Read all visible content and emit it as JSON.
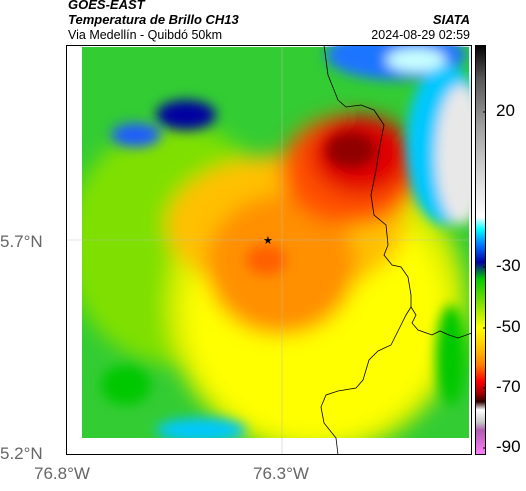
{
  "header": {
    "satellite": "GOES-EAST",
    "product": "Temperatura de Brillo CH13",
    "route": "Via Medellín - Quibdó 50km",
    "agency": "SIATA",
    "datetime": "2024-08-29 02:59"
  },
  "axes": {
    "lat_ticks": [
      "5.7°N",
      "5.2°N"
    ],
    "lon_ticks": [
      "76.8°W",
      "76.3°W"
    ]
  },
  "colorbar": {
    "ticks": [
      "20",
      "-30",
      "-50",
      "-70",
      "-90"
    ],
    "colors": [
      "#000000",
      "#444444",
      "#7a7a7a",
      "#a8a8a8",
      "#d4d4d4",
      "#ffffff",
      "#00ffff",
      "#00c8ff",
      "#0070ff",
      "#0000a0",
      "#00c800",
      "#7fe000",
      "#ffff00",
      "#ffc000",
      "#ff8000",
      "#ff0000",
      "#a00000",
      "#500000",
      "#000000",
      "#b05cb0",
      "#ff80ff"
    ]
  },
  "marker": {
    "symbol": "★"
  },
  "colors": {
    "deep_convection": "#a00000",
    "cold_top": "#ff0000",
    "warm_cloud": "#ffff00",
    "clear": "#ffffff"
  }
}
